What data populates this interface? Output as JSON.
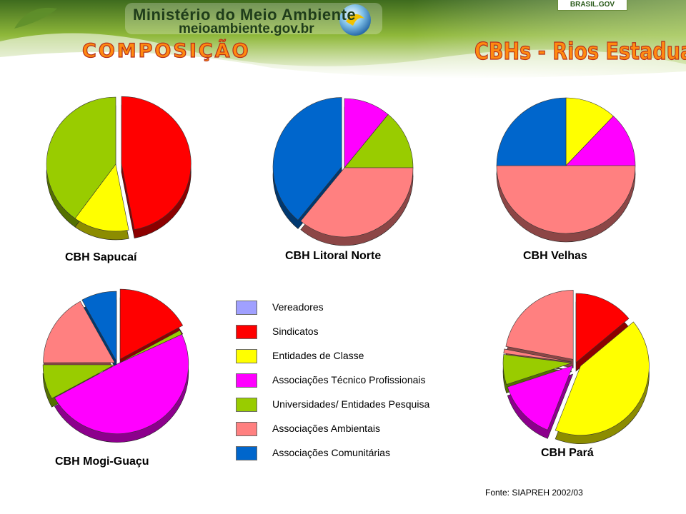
{
  "header": {
    "ministry": "Ministério do Meio Ambiente",
    "url": "meioambiente.gov.br",
    "brasil_gov": "BRASIL.GOV"
  },
  "title_left": "COMPOSIÇÃO",
  "title_right": "CBHs - Rios Estaduais",
  "source": "Fonte: SIAPREH 2002/03",
  "colors": {
    "vereadores": "#a0a0ff",
    "sindicatos": "#ff0000",
    "entidades_classe": "#ffff00",
    "assoc_tecnico": "#ff00ff",
    "universidades": "#99cc00",
    "assoc_ambientais": "#ff8080",
    "assoc_comunitarias": "#0066cc"
  },
  "legend": [
    {
      "label": "Vereadores",
      "color": "#a0a0ff"
    },
    {
      "label": "Sindicatos",
      "color": "#ff0000"
    },
    {
      "label": "Entidades de Classe",
      "color": "#ffff00"
    },
    {
      "label": "Associações Técnico Profissionais",
      "color": "#ff00ff"
    },
    {
      "label": "Universidades/ Entidades Pesquisa",
      "color": "#99cc00"
    },
    {
      "label": "Associações Ambientais",
      "color": "#ff8080"
    },
    {
      "label": "Associações Comunitárias",
      "color": "#0066cc"
    }
  ],
  "chart_data": [
    {
      "type": "pie",
      "title": "CBH Sapucaí",
      "slices": [
        {
          "category": "Sindicatos",
          "value": 47
        },
        {
          "category": "Entidades de Classe",
          "value": 13
        },
        {
          "category": "Universidades/ Entidades Pesquisa",
          "value": 40
        }
      ]
    },
    {
      "type": "pie",
      "title": "CBH Litoral Norte",
      "slices": [
        {
          "category": "Associações Técnico Profissionais",
          "value": 11
        },
        {
          "category": "Universidades/ Entidades Pesquisa",
          "value": 14
        },
        {
          "category": "Associações Ambientais",
          "value": 36
        },
        {
          "category": "Associações Comunitárias",
          "value": 39
        }
      ]
    },
    {
      "type": "pie",
      "title": "CBH Velhas",
      "slices": [
        {
          "category": "Entidades de Classe",
          "value": 12
        },
        {
          "category": "Associações Técnico Profissionais",
          "value": 13
        },
        {
          "category": "Associações Ambientais",
          "value": 50
        },
        {
          "category": "Associações Comunitárias",
          "value": 25
        }
      ]
    },
    {
      "type": "pie",
      "title": "CBH Mogi-Guaçu",
      "slices": [
        {
          "category": "Sindicatos",
          "value": 17
        },
        {
          "category": "Universidades/ Entidades Pesquisa",
          "value": 1
        },
        {
          "category": "Associações Técnico Profissionais",
          "value": 49
        },
        {
          "category": "Universidades/ Entidades Pesquisa",
          "value": 8
        },
        {
          "category": "Associações Ambientais",
          "value": 17
        },
        {
          "category": "Associações Comunitárias",
          "value": 8
        }
      ]
    },
    {
      "type": "pie",
      "title": "CBH Pará",
      "slices": [
        {
          "category": "Sindicatos",
          "value": 14
        },
        {
          "category": "Entidades de Classe",
          "value": 42
        },
        {
          "category": "Associações Técnico Profissionais",
          "value": 14
        },
        {
          "category": "Universidades/ Entidades Pesquisa",
          "value": 7
        },
        {
          "category": "Associações Ambientais",
          "value": 1
        },
        {
          "category": "Associações Ambientais",
          "value": 22
        }
      ]
    }
  ]
}
